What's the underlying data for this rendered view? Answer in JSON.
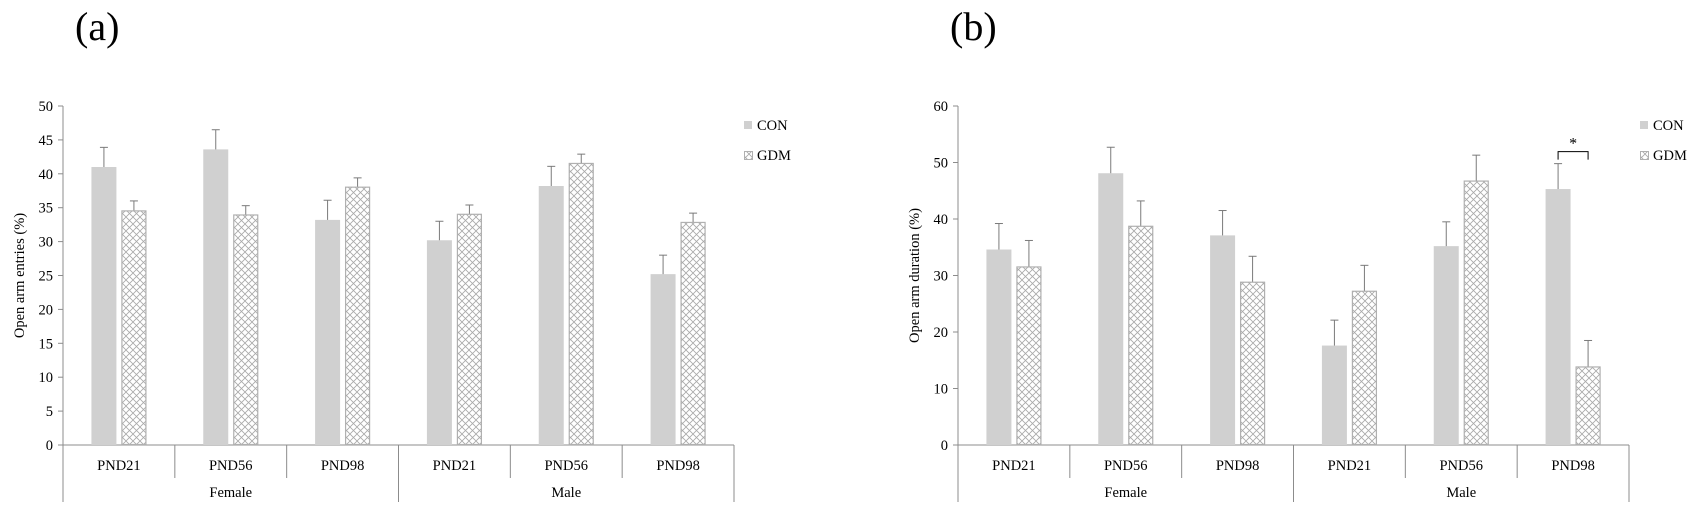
{
  "chart_data": [
    {
      "type": "bar",
      "panel_label": "(a)",
      "ylabel": "Open arm entries (%)",
      "ylim": [
        0,
        50
      ],
      "yticks": [
        "0",
        "5",
        "10",
        "15",
        "20",
        "25",
        "30",
        "35",
        "40",
        "45",
        "50"
      ],
      "groups": [
        "Female",
        "Male"
      ],
      "categories": [
        "PND21",
        "PND56",
        "PND98",
        "PND21",
        "PND56",
        "PND98"
      ],
      "legend_position": "top-right",
      "colors": {
        "CON": "#d0d0d0",
        "GDM_border": "#b0b0b0"
      },
      "series": [
        {
          "name": "CON",
          "values": [
            41.0,
            43.6,
            33.2,
            30.2,
            38.2,
            25.2
          ],
          "errors": [
            2.9,
            2.9,
            2.9,
            2.8,
            2.9,
            2.8
          ]
        },
        {
          "name": "GDM",
          "values": [
            34.6,
            34.0,
            38.1,
            34.1,
            41.6,
            32.9
          ],
          "errors": [
            1.4,
            1.3,
            1.3,
            1.3,
            1.3,
            1.3
          ]
        }
      ],
      "annotations": []
    },
    {
      "type": "bar",
      "panel_label": "(b)",
      "ylabel": "Open arm duration (%)",
      "ylim": [
        0,
        60
      ],
      "yticks": [
        "0",
        "10",
        "20",
        "30",
        "40",
        "50",
        "60"
      ],
      "groups": [
        "Female",
        "Male"
      ],
      "categories": [
        "PND21",
        "PND56",
        "PND98",
        "PND21",
        "PND56",
        "PND98"
      ],
      "legend_position": "top-right",
      "colors": {
        "CON": "#d0d0d0",
        "GDM_border": "#b0b0b0"
      },
      "series": [
        {
          "name": "CON",
          "values": [
            34.6,
            48.1,
            37.1,
            17.6,
            35.2,
            45.3
          ],
          "errors": [
            4.6,
            4.6,
            4.4,
            4.5,
            4.3,
            4.5
          ]
        },
        {
          "name": "GDM",
          "values": [
            31.6,
            38.8,
            28.9,
            27.3,
            46.8,
            13.9
          ],
          "errors": [
            4.6,
            4.4,
            4.5,
            4.5,
            4.5,
            4.6
          ]
        }
      ],
      "annotations": [
        {
          "text": "*",
          "category_index": 5
        }
      ]
    }
  ]
}
